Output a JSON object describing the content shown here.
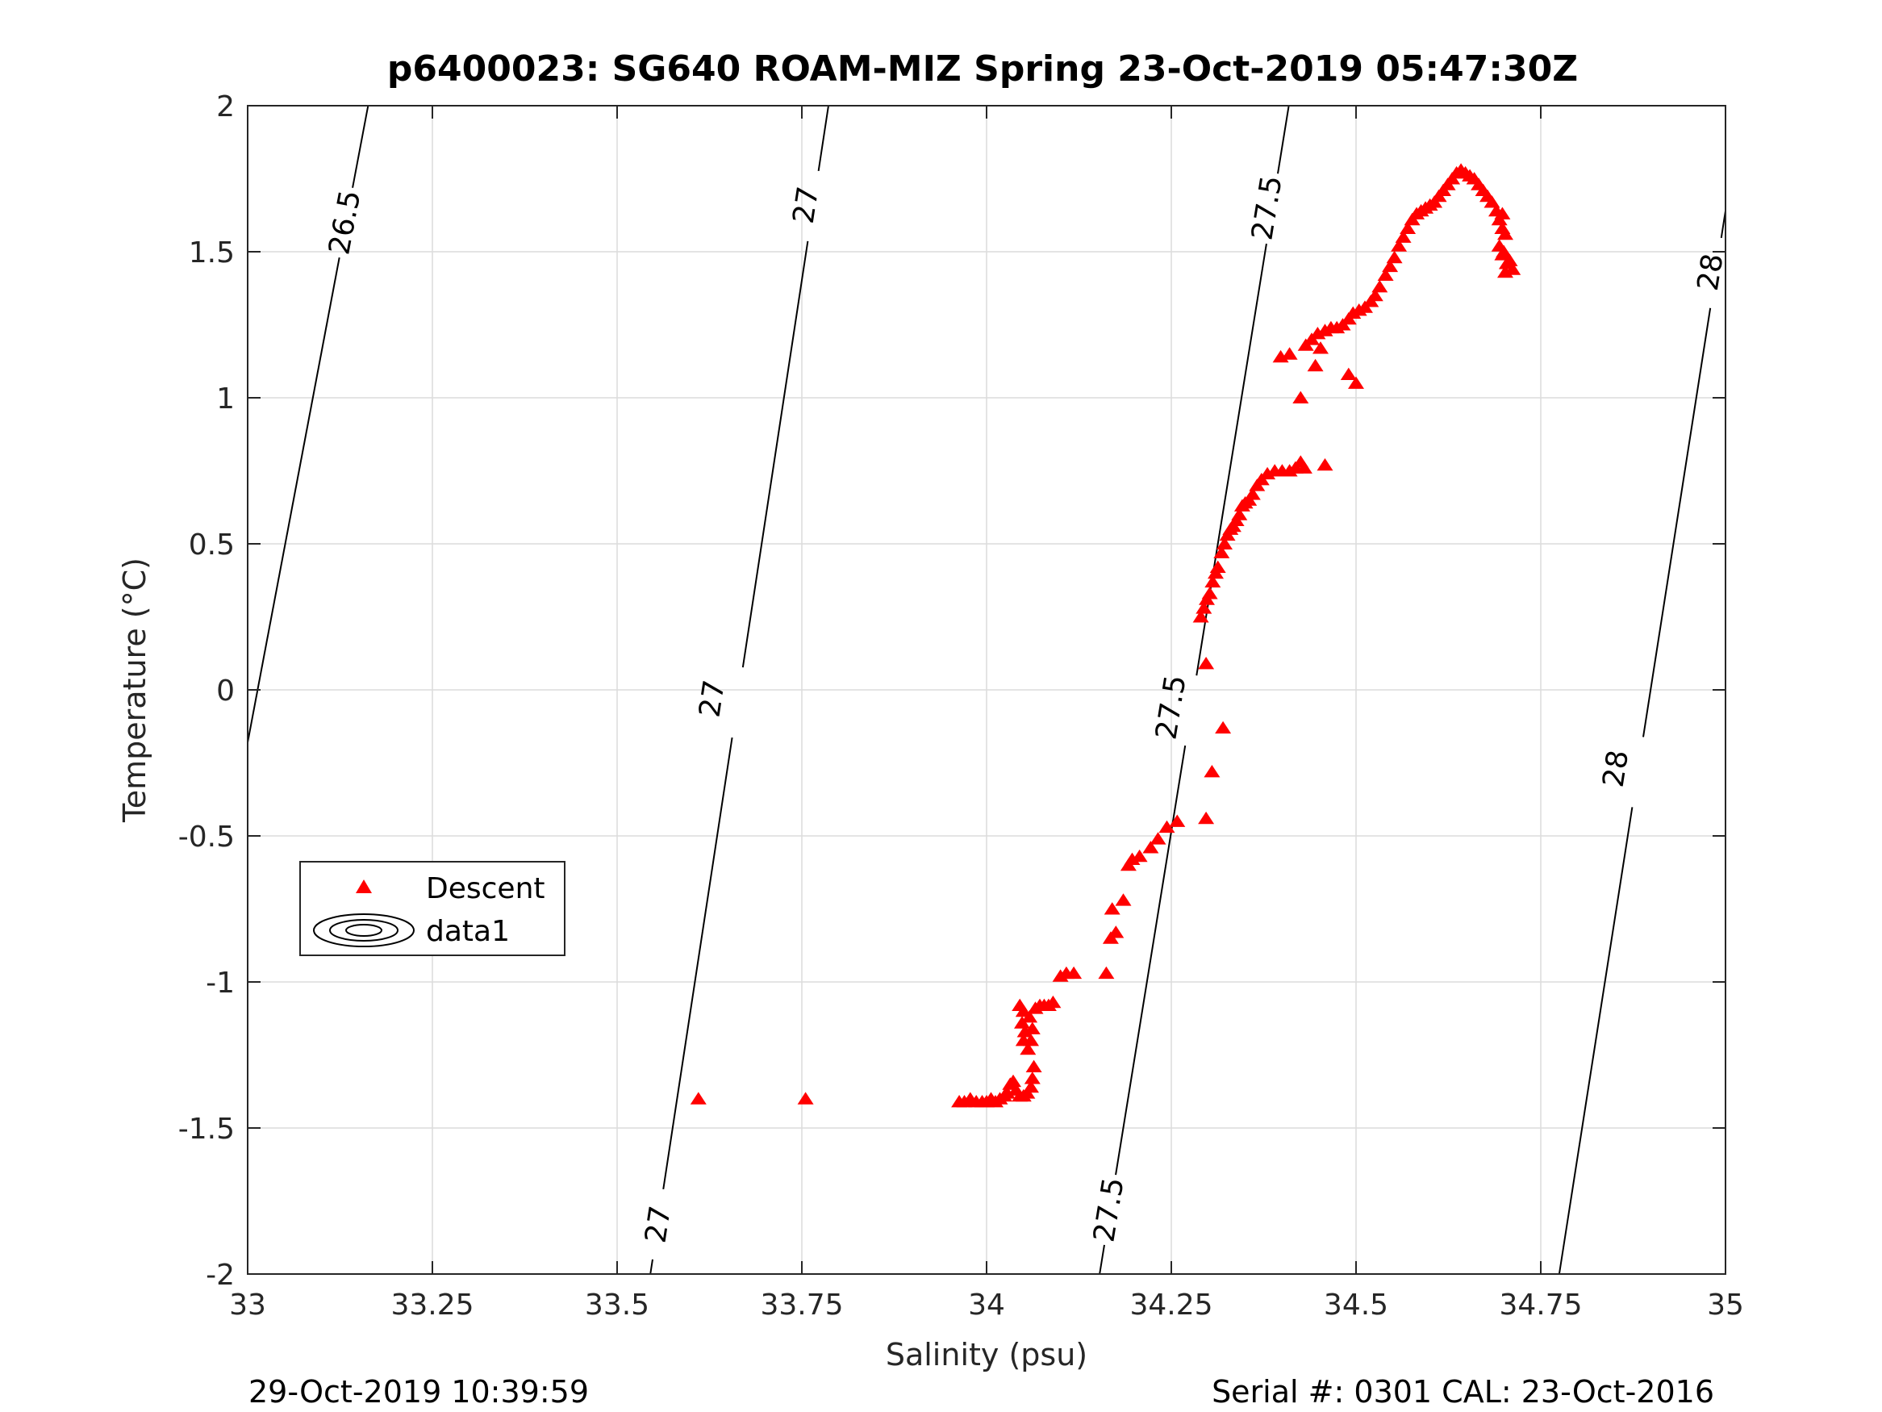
{
  "chart_data": {
    "type": "scatter",
    "title": "p6400023: SG640 ROAM-MIZ Spring 23-Oct-2019 05:47:30Z",
    "xlabel": "Salinity (psu)",
    "ylabel": "Temperature (°C)",
    "xlim": [
      33,
      35
    ],
    "ylim": [
      -2,
      2
    ],
    "xticks": [
      "33",
      "33.25",
      "33.5",
      "33.75",
      "34",
      "34.25",
      "34.5",
      "34.75",
      "35"
    ],
    "yticks": [
      "-2",
      "-1.5",
      "-1",
      "-0.5",
      "0",
      "0.5",
      "1",
      "1.5",
      "2"
    ],
    "grid": true,
    "legend_position": "left",
    "legend": [
      "Descent",
      "data1"
    ],
    "marker_color": "#ff0000",
    "series": [
      {
        "name": "Descent",
        "marker": "triangle",
        "points": [
          [
            33.61,
            -1.4
          ],
          [
            33.755,
            -1.4
          ],
          [
            33.963,
            -1.41
          ],
          [
            33.97,
            -1.41
          ],
          [
            33.978,
            -1.4
          ],
          [
            33.986,
            -1.41
          ],
          [
            33.994,
            -1.41
          ],
          [
            34.0,
            -1.41
          ],
          [
            34.006,
            -1.4
          ],
          [
            34.012,
            -1.41
          ],
          [
            34.018,
            -1.4
          ],
          [
            34.024,
            -1.39
          ],
          [
            34.028,
            -1.38
          ],
          [
            34.032,
            -1.35
          ],
          [
            34.036,
            -1.34
          ],
          [
            34.04,
            -1.37
          ],
          [
            34.045,
            -1.39
          ],
          [
            34.05,
            -1.39
          ],
          [
            34.055,
            -1.38
          ],
          [
            34.06,
            -1.36
          ],
          [
            34.062,
            -1.33
          ],
          [
            34.045,
            -1.08
          ],
          [
            34.05,
            -1.1
          ],
          [
            34.048,
            -1.14
          ],
          [
            34.052,
            -1.17
          ],
          [
            34.05,
            -1.2
          ],
          [
            34.056,
            -1.23
          ],
          [
            34.06,
            -1.2
          ],
          [
            34.062,
            -1.16
          ],
          [
            34.058,
            -1.12
          ],
          [
            34.064,
            -1.29
          ],
          [
            34.066,
            -1.09
          ],
          [
            34.072,
            -1.08
          ],
          [
            34.078,
            -1.08
          ],
          [
            34.084,
            -1.08
          ],
          [
            34.09,
            -1.07
          ],
          [
            34.1,
            -0.98
          ],
          [
            34.108,
            -0.97
          ],
          [
            34.118,
            -0.97
          ],
          [
            34.162,
            -0.97
          ],
          [
            34.168,
            -0.85
          ],
          [
            34.175,
            -0.83
          ],
          [
            34.17,
            -0.75
          ],
          [
            34.185,
            -0.72
          ],
          [
            34.192,
            -0.6
          ],
          [
            34.197,
            -0.58
          ],
          [
            34.207,
            -0.57
          ],
          [
            34.222,
            -0.54
          ],
          [
            34.232,
            -0.51
          ],
          [
            34.244,
            -0.47
          ],
          [
            34.258,
            -0.45
          ],
          [
            34.297,
            -0.44
          ],
          [
            34.305,
            -0.28
          ],
          [
            34.32,
            -0.13
          ],
          [
            34.297,
            0.09
          ],
          [
            34.29,
            0.25
          ],
          [
            34.294,
            0.28
          ],
          [
            34.298,
            0.31
          ],
          [
            34.302,
            0.33
          ],
          [
            34.306,
            0.37
          ],
          [
            34.31,
            0.4
          ],
          [
            34.313,
            0.42
          ],
          [
            34.318,
            0.47
          ],
          [
            34.322,
            0.5
          ],
          [
            34.326,
            0.53
          ],
          [
            34.33,
            0.55
          ],
          [
            34.334,
            0.56
          ],
          [
            34.338,
            0.58
          ],
          [
            34.342,
            0.6
          ],
          [
            34.346,
            0.63
          ],
          [
            34.35,
            0.64
          ],
          [
            34.355,
            0.65
          ],
          [
            34.36,
            0.67
          ],
          [
            34.366,
            0.7
          ],
          [
            34.372,
            0.72
          ],
          [
            34.38,
            0.74
          ],
          [
            34.39,
            0.75
          ],
          [
            34.4,
            0.75
          ],
          [
            34.41,
            0.75
          ],
          [
            34.418,
            0.76
          ],
          [
            34.425,
            0.78
          ],
          [
            34.43,
            0.76
          ],
          [
            34.458,
            0.77
          ],
          [
            34.398,
            1.14
          ],
          [
            34.41,
            1.15
          ],
          [
            34.425,
            1.0
          ],
          [
            34.445,
            1.11
          ],
          [
            34.49,
            1.08
          ],
          [
            34.5,
            1.05
          ],
          [
            34.432,
            1.18
          ],
          [
            34.44,
            1.2
          ],
          [
            34.448,
            1.22
          ],
          [
            34.452,
            1.17
          ],
          [
            34.458,
            1.23
          ],
          [
            34.466,
            1.24
          ],
          [
            34.474,
            1.24
          ],
          [
            34.482,
            1.25
          ],
          [
            34.49,
            1.27
          ],
          [
            34.496,
            1.29
          ],
          [
            34.504,
            1.3
          ],
          [
            34.512,
            1.31
          ],
          [
            34.52,
            1.33
          ],
          [
            34.526,
            1.35
          ],
          [
            34.532,
            1.38
          ],
          [
            34.54,
            1.42
          ],
          [
            34.546,
            1.45
          ],
          [
            34.552,
            1.48
          ],
          [
            34.558,
            1.52
          ],
          [
            34.564,
            1.55
          ],
          [
            34.57,
            1.58
          ],
          [
            34.576,
            1.61
          ],
          [
            34.582,
            1.63
          ],
          [
            34.588,
            1.64
          ],
          [
            34.594,
            1.65
          ],
          [
            34.6,
            1.66
          ],
          [
            34.606,
            1.67
          ],
          [
            34.612,
            1.69
          ],
          [
            34.618,
            1.71
          ],
          [
            34.624,
            1.73
          ],
          [
            34.63,
            1.75
          ],
          [
            34.636,
            1.77
          ],
          [
            34.642,
            1.78
          ],
          [
            34.648,
            1.77
          ],
          [
            34.654,
            1.76
          ],
          [
            34.66,
            1.75
          ],
          [
            34.666,
            1.73
          ],
          [
            34.672,
            1.71
          ],
          [
            34.678,
            1.69
          ],
          [
            34.684,
            1.67
          ],
          [
            34.69,
            1.64
          ],
          [
            34.694,
            1.61
          ],
          [
            34.698,
            1.58
          ],
          [
            34.702,
            1.56
          ],
          [
            34.698,
            1.63
          ],
          [
            34.694,
            1.52
          ],
          [
            34.698,
            1.49
          ],
          [
            34.704,
            1.46
          ],
          [
            34.708,
            1.47
          ],
          [
            34.712,
            1.44
          ],
          [
            34.702,
            1.43
          ],
          [
            34.7,
            1.5
          ]
        ]
      },
      {
        "name": "data1",
        "type": "contour",
        "levels": [
          "26.5",
          "27",
          "27.5",
          "28"
        ],
        "lines": [
          {
            "level": "26.5",
            "points": [
              [
                33.0,
                -0.18
              ],
              [
                33.163,
                2.0
              ]
            ],
            "labels": [
              [
                33.132,
                1.6
              ]
            ]
          },
          {
            "level": "27",
            "points": [
              [
                33.545,
                -2.0
              ],
              [
                33.786,
                2.0
              ]
            ],
            "labels": [
              [
                33.556,
                -1.83
              ],
              [
                33.629,
                -0.03
              ],
              [
                33.756,
                1.66
              ]
            ]
          },
          {
            "level": "27.5",
            "points": [
              [
                34.153,
                -2.0
              ],
              [
                34.409,
                2.0
              ]
            ],
            "labels": [
              [
                34.166,
                -1.78
              ],
              [
                34.25,
                -0.06
              ],
              [
                34.38,
                1.65
              ]
            ]
          },
          {
            "level": "28",
            "points": [
              [
                34.775,
                -2.0
              ],
              [
                35.0,
                1.64
              ]
            ],
            "labels": [
              [
                34.852,
                -0.27
              ],
              [
                34.98,
                1.43
              ]
            ]
          }
        ]
      }
    ]
  },
  "footer": {
    "timestamp": "29-Oct-2019 10:39:59",
    "serial": "Serial #: 0301  CAL: 23-Oct-2016"
  }
}
